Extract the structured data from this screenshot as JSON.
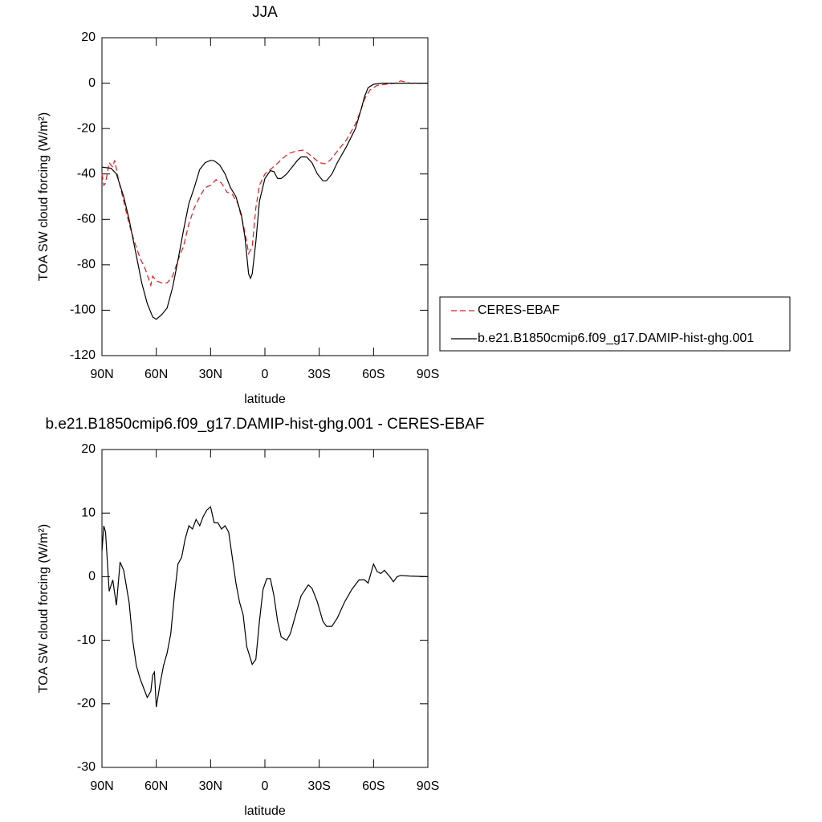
{
  "chart_data": [
    {
      "type": "line",
      "title": "JJA",
      "xlabel": "latitude",
      "ylabel": "TOA SW cloud forcing (W/m²)",
      "xlim": [
        90,
        -90
      ],
      "ylim": [
        -120,
        20
      ],
      "xticks": [
        {
          "value": 90,
          "label": "90N"
        },
        {
          "value": 60,
          "label": "60N"
        },
        {
          "value": 30,
          "label": "30N"
        },
        0,
        {
          "value": -30,
          "label": "30S"
        },
        {
          "value": -60,
          "label": "60S"
        },
        {
          "value": -90,
          "label": "90S"
        }
      ],
      "yticks": [
        -120,
        -100,
        -80,
        -60,
        -40,
        -20,
        0,
        20
      ],
      "legend": "right",
      "series": [
        {
          "name": "CERES-EBAF",
          "color": "#e0191b",
          "dash": true,
          "x": [
            90,
            89,
            88,
            86,
            84,
            83,
            81,
            78,
            75,
            72,
            69,
            66,
            63,
            62,
            60,
            57,
            54,
            51,
            48,
            45,
            42,
            39,
            36,
            33,
            30,
            27,
            24,
            21,
            18,
            15,
            12,
            10,
            9,
            7,
            5,
            3,
            0,
            -3,
            -6,
            -10,
            -13,
            -17,
            -21,
            -24,
            -27,
            -30,
            -33,
            -36,
            -40,
            -45,
            -50,
            -53,
            -55,
            -58,
            -62,
            -67,
            -72,
            -75,
            -80,
            -90
          ],
          "values": [
            -40,
            -45,
            -44,
            -35,
            -37,
            -34,
            -42,
            -52,
            -62,
            -70,
            -77,
            -82,
            -89,
            -85,
            -87,
            -88,
            -88,
            -85,
            -78,
            -72,
            -62,
            -55,
            -50,
            -46,
            -45,
            -42.5,
            -44,
            -48,
            -49,
            -53,
            -62,
            -70,
            -75,
            -72,
            -55,
            -45,
            -40,
            -38,
            -36,
            -33,
            -31,
            -30,
            -29.5,
            -31,
            -33,
            -35,
            -35.5,
            -34,
            -30,
            -25,
            -18,
            -12,
            -7,
            -3,
            -1,
            -0.5,
            0,
            1,
            0,
            0
          ]
        },
        {
          "name": "b.e21.B1850cmip6.f09_g17.DAMIP-hist-ghg.001",
          "color": "#000000",
          "dash": false,
          "x": [
            90,
            85,
            82,
            78,
            75,
            72,
            68,
            65,
            62,
            60,
            57,
            54,
            51,
            48,
            45,
            42,
            39,
            36,
            33,
            30,
            28,
            25,
            22,
            19,
            16,
            13,
            11,
            9,
            8,
            7,
            5,
            3,
            0,
            -3,
            -5,
            -7,
            -9,
            -12,
            -15,
            -18,
            -20,
            -23,
            -26,
            -29,
            -32,
            -34,
            -37,
            -40,
            -45,
            -50,
            -53,
            -55,
            -57,
            -60,
            -65,
            -70,
            -80,
            -90
          ],
          "values": [
            -37,
            -37.5,
            -40,
            -50,
            -60,
            -72,
            -88,
            -97,
            -103,
            -104,
            -102,
            -99,
            -90,
            -78,
            -65,
            -53,
            -46,
            -38,
            -35,
            -34,
            -34.2,
            -36,
            -40,
            -46,
            -50,
            -58,
            -68,
            -84,
            -86,
            -84,
            -70,
            -52,
            -42,
            -38.5,
            -39,
            -42,
            -42,
            -40,
            -37,
            -34,
            -32.5,
            -32.5,
            -35,
            -40,
            -43,
            -43,
            -40,
            -35,
            -28,
            -20,
            -12,
            -6,
            -2,
            -0.5,
            0,
            0,
            0,
            0
          ]
        }
      ]
    },
    {
      "type": "line",
      "title": "b.e21.B1850cmip6.f09_g17.DAMIP-hist-ghg.001 - CERES-EBAF",
      "xlabel": "latitude",
      "ylabel": "TOA SW cloud forcing (W/m²)",
      "xlim": [
        90,
        -90
      ],
      "ylim": [
        -30,
        20
      ],
      "xticks": [
        {
          "value": 90,
          "label": "90N"
        },
        {
          "value": 60,
          "label": "60N"
        },
        {
          "value": 30,
          "label": "30N"
        },
        0,
        {
          "value": -30,
          "label": "30S"
        },
        {
          "value": -60,
          "label": "60S"
        },
        {
          "value": -90,
          "label": "90S"
        }
      ],
      "yticks": [
        -30,
        -20,
        -10,
        0,
        10,
        20
      ],
      "series": [
        {
          "color": "#000000",
          "dash": false,
          "x": [
            90,
            89,
            88,
            86,
            84,
            82,
            80,
            78,
            75,
            73,
            71,
            69,
            67,
            65,
            63,
            62,
            61,
            60,
            58,
            56,
            54,
            52,
            50,
            48,
            46,
            44,
            42,
            40,
            38,
            36,
            34,
            32,
            30,
            28,
            26,
            24,
            22,
            20,
            18,
            16,
            14,
            12,
            10,
            7,
            5,
            3,
            1,
            -1,
            -3,
            -5,
            -7,
            -9,
            -12,
            -14,
            -17,
            -20,
            -24,
            -26,
            -29,
            -32,
            -34,
            -37,
            -40,
            -44,
            -48,
            -52,
            -55,
            -57,
            -59,
            -60,
            -62,
            -64,
            -66,
            -69,
            -71,
            -73,
            -75,
            -80,
            -90
          ],
          "values": [
            4,
            8,
            7,
            -2.3,
            -0.5,
            -4.5,
            2.3,
            1,
            -4,
            -10,
            -14,
            -16,
            -17.5,
            -19,
            -18,
            -15.5,
            -15,
            -20.5,
            -17,
            -14,
            -12,
            -9,
            -3,
            2,
            3,
            6,
            8,
            7.5,
            9,
            8,
            9.5,
            10.5,
            11,
            8.5,
            8.5,
            7.5,
            8,
            7,
            3,
            -1,
            -4,
            -6,
            -11,
            -13.8,
            -13,
            -7,
            -2,
            -0.3,
            -0.3,
            -3,
            -7,
            -9.5,
            -10,
            -9,
            -6,
            -3,
            -1.3,
            -1.8,
            -4,
            -7,
            -7.8,
            -7.8,
            -6.5,
            -4,
            -2,
            -0.5,
            -0.5,
            -1,
            1,
            2,
            0.8,
            0.5,
            1,
            0,
            -0.8,
            0,
            0.2,
            0.1,
            0
          ]
        }
      ]
    }
  ]
}
